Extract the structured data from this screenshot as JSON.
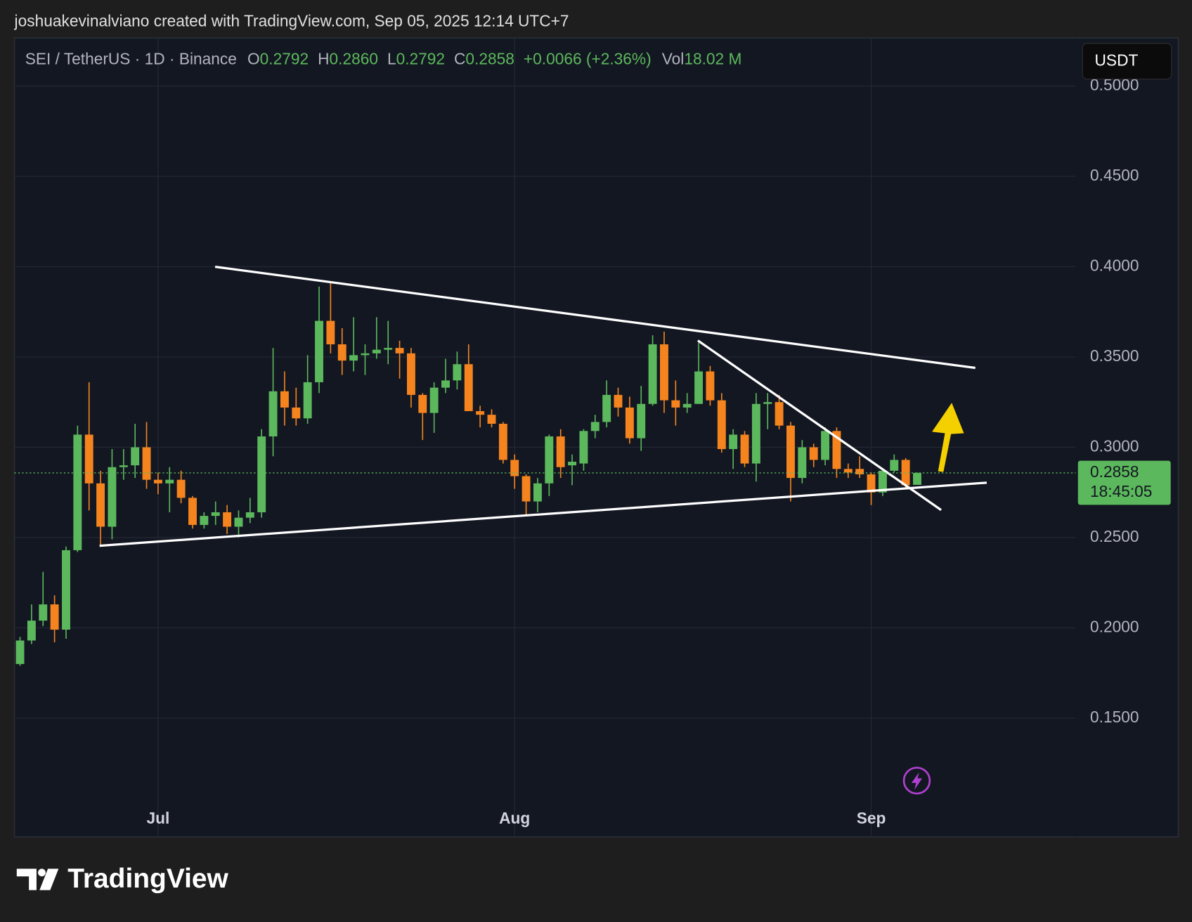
{
  "header": {
    "attribution": "joshuakevinalviano created with TradingView.com, Sep 05, 2025 12:14 UTC+7"
  },
  "footer": {
    "brand": "TradingView"
  },
  "chart_data": {
    "type": "candlestick",
    "symbol": "SEI / TetherUS · 1D · Binance",
    "ohlc_header": [
      {
        "label": "O",
        "value": "0.2792"
      },
      {
        "label": "H",
        "value": "0.2860"
      },
      {
        "label": "L",
        "value": "0.2792"
      },
      {
        "label": "C",
        "value": "0.2858"
      }
    ],
    "change": "+0.0066 (+2.36%)",
    "volume_label": "Vol",
    "volume": "18.02 M",
    "currency": "USDT",
    "countdown": "18:45:05",
    "up_color": "#5cb85c",
    "down_color": "#f5841f",
    "grid": true,
    "categories": [
      null,
      null,
      null,
      null,
      null,
      null,
      null,
      null,
      null,
      null,
      null,
      null,
      "Jul",
      null,
      null,
      null,
      null,
      null,
      null,
      null,
      null,
      null,
      null,
      null,
      null,
      null,
      null,
      null,
      null,
      null,
      null,
      null,
      null,
      null,
      null,
      null,
      null,
      null,
      null,
      null,
      null,
      null,
      null,
      "Aug",
      null,
      null,
      null,
      null,
      null,
      null,
      null,
      null,
      null,
      null,
      null,
      null,
      null,
      null,
      null,
      null,
      null,
      null,
      null,
      null,
      null,
      null,
      null,
      null,
      null,
      null,
      null,
      null,
      null,
      null,
      "Sep",
      null,
      null,
      null,
      null
    ],
    "open": [
      0.18,
      0.193,
      0.204,
      0.213,
      0.199,
      0.243,
      0.307,
      0.28,
      0.256,
      0.289,
      0.29,
      0.3,
      0.282,
      0.28,
      0.282,
      0.272,
      0.257,
      0.262,
      0.264,
      0.256,
      0.261,
      0.264,
      0.306,
      0.331,
      0.322,
      0.316,
      0.336,
      0.37,
      0.357,
      0.348,
      0.351,
      0.352,
      0.354,
      0.355,
      0.352,
      0.329,
      0.319,
      0.333,
      0.337,
      0.346,
      0.32,
      0.318,
      0.313,
      0.293,
      0.284,
      0.27,
      0.28,
      0.306,
      0.29,
      0.291,
      0.309,
      0.314,
      0.329,
      0.322,
      0.305,
      0.324,
      0.357,
      0.326,
      0.322,
      0.324,
      0.342,
      0.326,
      0.299,
      0.307,
      0.291,
      0.324,
      0.325,
      0.312,
      0.283,
      0.3,
      0.293,
      0.309,
      0.288,
      0.288,
      0.285,
      0.275,
      0.287,
      0.293,
      0.2792
    ],
    "high": [
      0.195,
      0.213,
      0.231,
      0.218,
      0.245,
      0.312,
      0.336,
      0.287,
      0.299,
      0.299,
      0.313,
      0.314,
      0.286,
      0.289,
      0.287,
      0.273,
      0.264,
      0.27,
      0.268,
      0.265,
      0.272,
      0.31,
      0.355,
      0.342,
      0.333,
      0.351,
      0.389,
      0.392,
      0.366,
      0.372,
      0.357,
      0.372,
      0.37,
      0.359,
      0.355,
      0.33,
      0.336,
      0.349,
      0.353,
      0.357,
      0.323,
      0.321,
      0.314,
      0.296,
      0.285,
      0.283,
      0.307,
      0.31,
      0.296,
      0.31,
      0.318,
      0.337,
      0.333,
      0.328,
      0.334,
      0.362,
      0.364,
      0.337,
      0.33,
      0.358,
      0.345,
      0.33,
      0.31,
      0.309,
      0.33,
      0.33,
      0.329,
      0.314,
      0.304,
      0.302,
      0.311,
      0.311,
      0.291,
      0.295,
      0.286,
      0.288,
      0.296,
      0.294,
      0.286
    ],
    "low": [
      0.179,
      0.191,
      0.201,
      0.192,
      0.194,
      0.242,
      0.265,
      0.245,
      0.249,
      0.282,
      0.283,
      0.277,
      0.274,
      0.264,
      0.269,
      0.255,
      0.255,
      0.257,
      0.252,
      0.25,
      0.258,
      0.261,
      0.295,
      0.312,
      0.312,
      0.313,
      0.33,
      0.352,
      0.34,
      0.342,
      0.34,
      0.349,
      0.346,
      0.338,
      0.322,
      0.304,
      0.308,
      0.33,
      0.332,
      0.32,
      0.311,
      0.311,
      0.291,
      0.277,
      0.262,
      0.264,
      0.273,
      0.283,
      0.279,
      0.287,
      0.305,
      0.311,
      0.317,
      0.302,
      0.298,
      0.323,
      0.319,
      0.312,
      0.319,
      0.324,
      0.323,
      0.297,
      0.288,
      0.289,
      0.281,
      0.31,
      0.31,
      0.27,
      0.28,
      0.289,
      0.29,
      0.283,
      0.283,
      0.283,
      0.268,
      0.273,
      0.286,
      0.277,
      0.2792
    ],
    "close": [
      0.193,
      0.204,
      0.213,
      0.199,
      0.243,
      0.307,
      0.28,
      0.256,
      0.289,
      0.29,
      0.3,
      0.282,
      0.28,
      0.282,
      0.272,
      0.257,
      0.262,
      0.264,
      0.256,
      0.261,
      0.264,
      0.306,
      0.331,
      0.322,
      0.316,
      0.336,
      0.37,
      0.357,
      0.348,
      0.351,
      0.352,
      0.354,
      0.355,
      0.352,
      0.329,
      0.319,
      0.333,
      0.337,
      0.346,
      0.32,
      0.318,
      0.313,
      0.293,
      0.284,
      0.27,
      0.28,
      0.306,
      0.289,
      0.292,
      0.309,
      0.314,
      0.329,
      0.322,
      0.305,
      0.324,
      0.357,
      0.326,
      0.322,
      0.324,
      0.342,
      0.326,
      0.299,
      0.307,
      0.291,
      0.324,
      0.325,
      0.312,
      0.283,
      0.3,
      0.293,
      0.309,
      0.288,
      0.286,
      0.285,
      0.275,
      0.287,
      0.293,
      0.279,
      0.2858
    ],
    "ylim": [
      0.0847,
      0.5266
    ],
    "yticks": [
      {
        "value": 0.15,
        "label": "0.1500"
      },
      {
        "value": 0.2,
        "label": "0.2000"
      },
      {
        "value": 0.25,
        "label": "0.2500"
      },
      {
        "value": 0.3,
        "label": "0.3000"
      },
      {
        "value": 0.35,
        "label": "0.3500"
      },
      {
        "value": 0.4,
        "label": "0.4000"
      },
      {
        "value": 0.45,
        "label": "0.4500"
      },
      {
        "value": 0.5,
        "label": "0.5000"
      }
    ]
  }
}
